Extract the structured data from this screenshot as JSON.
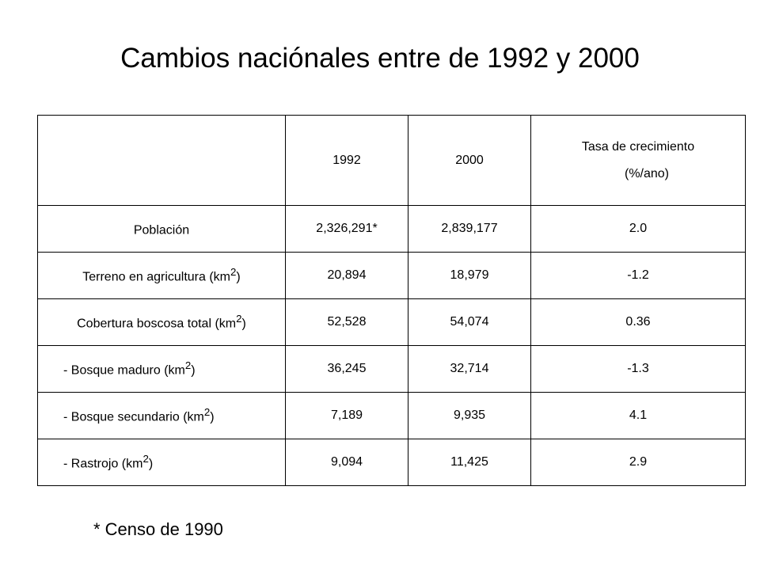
{
  "title": "Cambios naciónales entre de 1992 y 2000",
  "table": {
    "headers": {
      "col0": "",
      "col1": "1992",
      "col2": "2000",
      "col3_line1": "Tasa de crecimiento",
      "col3_line2": "(%/ano)"
    },
    "rows": [
      {
        "label": "Población",
        "unit": "",
        "unit_sup": "",
        "unit_close": "",
        "v1992": "2,326,291*",
        "v2000": "2,839,177",
        "rate": "2.0"
      },
      {
        "label": "Terreno en agricultura ",
        "unit": "(km",
        "unit_sup": "2",
        "unit_close": ")",
        "v1992": "20,894",
        "v2000": "18,979",
        "rate": "-1.2"
      },
      {
        "label": "Cobertura boscosa total ",
        "unit": "(km",
        "unit_sup": "2",
        "unit_close": ")",
        "v1992": "52,528",
        "v2000": "54,074",
        "rate": "0.36"
      },
      {
        "label": "-  Bosque maduro ",
        "unit": "(km",
        "unit_sup": "2",
        "unit_close": ")",
        "v1992": "36,245",
        "v2000": "32,714",
        "rate": "-1.3"
      },
      {
        "label": "-  Bosque secundario ",
        "unit": "(km",
        "unit_sup": "2",
        "unit_close": ")",
        "v1992": "7,189",
        "v2000": "9,935",
        "rate": "4.1"
      },
      {
        "label": "-  Rastrojo ",
        "unit": "(km",
        "unit_sup": "2",
        "unit_close": ")",
        "v1992": "9,094",
        "v2000": "11,425",
        "rate": "2.9"
      }
    ]
  },
  "footnote": "* Censo de 1990"
}
